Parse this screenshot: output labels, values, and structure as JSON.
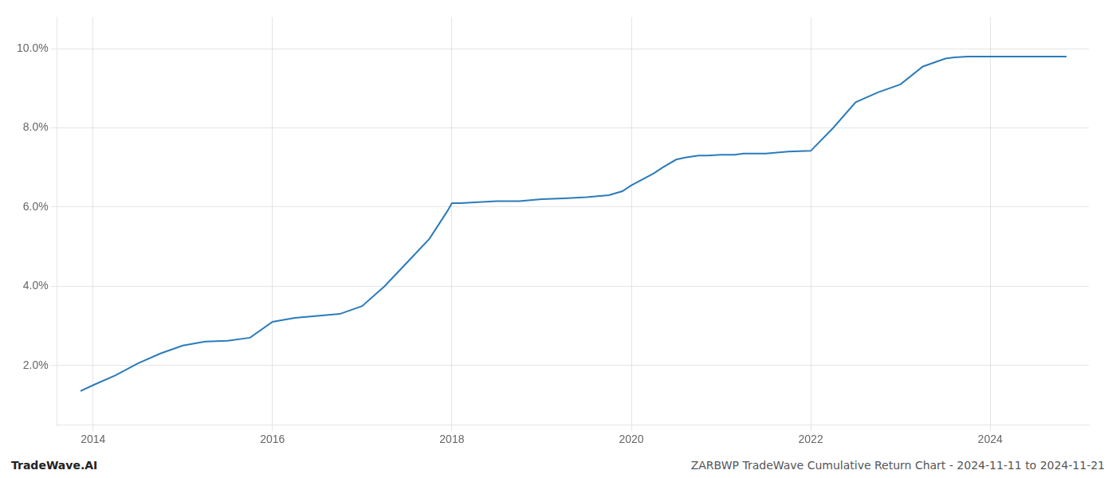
{
  "chart_data": {
    "type": "line",
    "title": "ZARBWP TradeWave Cumulative Return Chart - 2024-11-11 to 2024-11-21",
    "watermark": "TradeWave.AI",
    "color": "#2b7bba",
    "x": [
      2013.86,
      2014.0,
      2014.25,
      2014.5,
      2014.75,
      2015.0,
      2015.25,
      2015.5,
      2015.75,
      2016.0,
      2016.25,
      2016.5,
      2016.75,
      2017.0,
      2017.25,
      2017.5,
      2017.75,
      2017.95,
      2018.0,
      2018.1,
      2018.25,
      2018.5,
      2018.75,
      2019.0,
      2019.25,
      2019.5,
      2019.6,
      2019.75,
      2019.9,
      2020.0,
      2020.25,
      2020.35,
      2020.5,
      2020.6,
      2020.75,
      2020.85,
      2021.0,
      2021.15,
      2021.25,
      2021.5,
      2021.75,
      2022.0,
      2022.25,
      2022.5,
      2022.75,
      2023.0,
      2023.25,
      2023.5,
      2023.6,
      2023.75,
      2023.9,
      2024.0,
      2024.5,
      2024.85
    ],
    "values": [
      1.35,
      1.5,
      1.75,
      2.05,
      2.3,
      2.5,
      2.6,
      2.62,
      2.7,
      3.1,
      3.2,
      3.25,
      3.3,
      3.5,
      4.0,
      4.6,
      5.2,
      5.9,
      6.1,
      6.1,
      6.12,
      6.15,
      6.15,
      6.2,
      6.22,
      6.25,
      6.27,
      6.3,
      6.4,
      6.55,
      6.85,
      7.0,
      7.2,
      7.25,
      7.3,
      7.3,
      7.32,
      7.32,
      7.35,
      7.35,
      7.4,
      7.42,
      8.0,
      8.65,
      8.9,
      9.1,
      9.55,
      9.75,
      9.78,
      9.8,
      9.8,
      9.8,
      9.8,
      9.8
    ],
    "xlim": [
      2013.6,
      2025.1
    ],
    "ylim": [
      0.5,
      10.8
    ],
    "xticks": [
      2014,
      2016,
      2018,
      2020,
      2022,
      2024
    ],
    "yticks": [
      {
        "value": 2.0,
        "label": "2.0%"
      },
      {
        "value": 4.0,
        "label": "4.0%"
      },
      {
        "value": 6.0,
        "label": "6.0%"
      },
      {
        "value": 8.0,
        "label": "8.0%"
      },
      {
        "value": 10.0,
        "label": "10.0%"
      }
    ],
    "grid": true
  }
}
